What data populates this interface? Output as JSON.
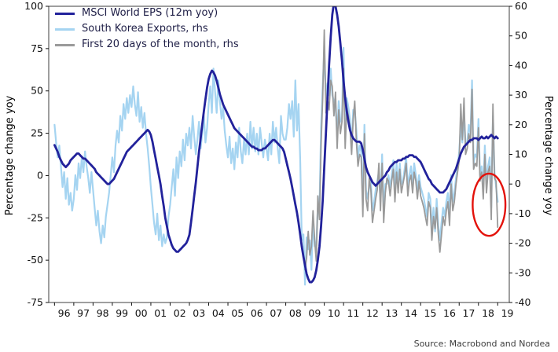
{
  "chart_data": {
    "type": "line",
    "title": "",
    "grid": "off",
    "legend_position": "top-left-inside",
    "source": "Source: Macrobond and Nordea",
    "x_axis": {
      "range": [
        1995.7,
        2019.6
      ],
      "first_tick_year": 1996,
      "tick_labels": [
        "96",
        "97",
        "98",
        "99",
        "00",
        "01",
        "02",
        "03",
        "04",
        "05",
        "06",
        "07",
        "08",
        "09",
        "10",
        "11",
        "12",
        "13",
        "14",
        "15",
        "16",
        "17",
        "18",
        "19"
      ]
    },
    "left_axis": {
      "label": "Percentage change yoy",
      "range": [
        -75,
        100
      ],
      "ticks": [
        100,
        75,
        50,
        25,
        0,
        -25,
        -50,
        -75
      ]
    },
    "right_axis": {
      "label": "Percentage change yoy",
      "range": [
        -40,
        60
      ],
      "ticks": [
        60,
        50,
        40,
        30,
        20,
        10,
        0,
        -10,
        -20,
        -30,
        -40
      ]
    },
    "series": [
      {
        "name": "MSCI World EPS (12m yoy)",
        "axis": "left",
        "color": "#22229b",
        "width": 2.8,
        "start": 1996.0,
        "step": 0.0833333,
        "values": [
          18,
          16,
          14,
          11,
          9,
          7,
          6,
          5,
          6,
          7,
          9,
          10,
          11,
          12,
          13,
          13,
          12,
          11,
          10,
          10,
          9,
          8,
          7,
          6,
          5,
          4,
          2,
          1,
          0,
          -1,
          -2,
          -3,
          -4,
          -5,
          -5,
          -4,
          -3,
          -2,
          0,
          2,
          4,
          6,
          8,
          10,
          12,
          14,
          15,
          16,
          17,
          18,
          19,
          20,
          21,
          22,
          23,
          24,
          25,
          26,
          27,
          26,
          24,
          20,
          15,
          10,
          5,
          0,
          -5,
          -12,
          -18,
          -25,
          -30,
          -35,
          -38,
          -41,
          -43,
          -44,
          -45,
          -45,
          -44,
          -43,
          -42,
          -41,
          -40,
          -38,
          -35,
          -28,
          -20,
          -12,
          -4,
          5,
          14,
          22,
          30,
          38,
          45,
          52,
          57,
          60,
          62,
          61,
          59,
          56,
          52,
          48,
          45,
          42,
          40,
          38,
          36,
          34,
          32,
          30,
          28,
          27,
          26,
          25,
          24,
          23,
          22,
          21,
          20,
          19,
          18,
          17,
          17,
          16,
          16,
          15,
          15,
          15,
          16,
          16,
          17,
          18,
          19,
          20,
          21,
          21,
          20,
          19,
          18,
          17,
          16,
          14,
          10,
          6,
          2,
          -2,
          -7,
          -12,
          -17,
          -22,
          -28,
          -35,
          -42,
          -48,
          -53,
          -58,
          -61,
          -63,
          -63,
          -62,
          -60,
          -56,
          -50,
          -42,
          -30,
          -15,
          5,
          25,
          45,
          65,
          82,
          95,
          102,
          100,
          95,
          88,
          78,
          68,
          56,
          46,
          38,
          32,
          27,
          24,
          22,
          21,
          20,
          20,
          20,
          19,
          15,
          10,
          5,
          2,
          0,
          -2,
          -4,
          -5,
          -6,
          -5,
          -4,
          -3,
          -2,
          -1,
          0,
          2,
          3,
          5,
          6,
          7,
          8,
          8,
          9,
          9,
          9,
          10,
          10,
          11,
          11,
          12,
          12,
          12,
          11,
          11,
          10,
          9,
          8,
          6,
          4,
          2,
          0,
          -2,
          -3,
          -5,
          -6,
          -7,
          -8,
          -9,
          -10,
          -10,
          -10,
          -9,
          -8,
          -6,
          -4,
          -2,
          0,
          2,
          4,
          7,
          10,
          13,
          15,
          17,
          18,
          19,
          20,
          21,
          21,
          22,
          22,
          22,
          21,
          22,
          23,
          22,
          22,
          23,
          22,
          23,
          24,
          23,
          22,
          23,
          22
        ]
      },
      {
        "name": "South Korea Exports, rhs",
        "axis": "right",
        "color": "#a5d4f1",
        "width": 2.2,
        "start": 1996.0,
        "step": 0.0833333,
        "values": [
          20,
          14,
          9,
          13,
          6,
          -1,
          4,
          -5,
          2,
          -7,
          -3,
          -9,
          -5,
          3,
          -2,
          7,
          2,
          9,
          4,
          11,
          6,
          2,
          -3,
          4,
          -2,
          -8,
          -14,
          -9,
          -16,
          -20,
          -14,
          -18,
          -11,
          -7,
          -3,
          3,
          9,
          4,
          13,
          18,
          14,
          23,
          18,
          27,
          22,
          29,
          24,
          30,
          26,
          33,
          27,
          23,
          31,
          21,
          26,
          19,
          24,
          17,
          12,
          6,
          -1,
          -7,
          -13,
          -17,
          -10,
          -19,
          -14,
          -21,
          -17,
          -20,
          -18,
          -11,
          -7,
          -1,
          5,
          -4,
          9,
          2,
          11,
          6,
          15,
          8,
          17,
          13,
          19,
          12,
          23,
          16,
          10,
          15,
          21,
          12,
          17,
          23,
          14,
          19,
          27,
          33,
          24,
          39,
          31,
          24,
          35,
          28,
          22,
          26,
          18,
          13,
          9,
          16,
          7,
          12,
          5,
          14,
          9,
          19,
          11,
          7,
          15,
          10,
          17,
          10,
          21,
          12,
          19,
          11,
          17,
          10,
          19,
          14,
          9,
          15,
          12,
          8,
          17,
          10,
          21,
          14,
          19,
          12,
          7,
          23,
          17,
          15,
          15,
          19,
          27,
          22,
          28,
          16,
          35,
          18,
          27,
          8,
          -19,
          -17,
          -34,
          -18,
          -22,
          -19,
          -29,
          -12,
          -21,
          -21,
          -8,
          -8,
          19,
          33,
          45,
          29,
          34,
          30,
          39,
          30,
          28,
          27,
          16,
          28,
          21,
          22,
          46,
          16,
          29,
          26,
          22,
          13,
          25,
          25,
          18,
          9,
          13,
          11,
          -7,
          20,
          -2,
          -5,
          -1,
          1,
          -9,
          -6,
          -2,
          1,
          4,
          -6,
          10,
          -9,
          0,
          0,
          3,
          -1,
          3,
          8,
          -2,
          7,
          0,
          7,
          0,
          1,
          5,
          9,
          -1,
          3,
          6,
          0,
          7,
          3,
          -2,
          3,
          -1,
          -3,
          -5,
          -8,
          -11,
          -3,
          -5,
          -15,
          -8,
          -16,
          -5,
          -14,
          -19,
          -13,
          -8,
          -11,
          -6,
          -3,
          -10,
          3,
          -6,
          -3,
          2,
          6,
          11,
          20,
          14,
          24,
          13,
          14,
          20,
          17,
          35,
          7,
          10,
          9,
          22,
          3,
          6,
          -2,
          13,
          0,
          6,
          9,
          -8,
          23,
          4,
          -1,
          -6
        ]
      },
      {
        "name": "First 20 days of the month, rhs",
        "axis": "right",
        "color": "#9a9a9a",
        "width": 1.8,
        "start": 2009.0,
        "step": 0.0833333,
        "values": [
          -29,
          -25,
          -16,
          -24,
          -21,
          -9,
          -19,
          -26,
          -4,
          -12,
          13,
          29,
          52,
          24,
          29,
          25,
          35,
          33,
          23,
          31,
          12,
          25,
          17,
          21,
          39,
          12,
          26,
          23,
          19,
          10,
          22,
          28,
          14,
          6,
          10,
          9,
          -11,
          17,
          -5,
          -9,
          2,
          -2,
          -13,
          -9,
          -5,
          -2,
          7,
          -9,
          7,
          -13,
          -3,
          2,
          1,
          -4,
          1,
          5,
          -6,
          4,
          -3,
          5,
          -3,
          0,
          3,
          7,
          -4,
          1,
          3,
          -3,
          4,
          1,
          -5,
          1,
          -4,
          -6,
          -8,
          -11,
          -14,
          -6,
          -8,
          -19,
          -11,
          -15,
          -8,
          -17,
          -23,
          -17,
          -11,
          -14,
          -9,
          -6,
          -14,
          0,
          -9,
          -6,
          0,
          4,
          8,
          27,
          15,
          29,
          10,
          12,
          17,
          14,
          32,
          5,
          7,
          6,
          19,
          1,
          4,
          -5,
          10,
          -3,
          4,
          6,
          -12,
          27,
          2,
          1,
          -14.6
        ]
      }
    ],
    "annotation": {
      "shape": "ellipse",
      "x": 2018.55,
      "y_right": -7,
      "rx_years": 0.85,
      "ry_units": 10.5,
      "color": "#e3120b"
    }
  }
}
